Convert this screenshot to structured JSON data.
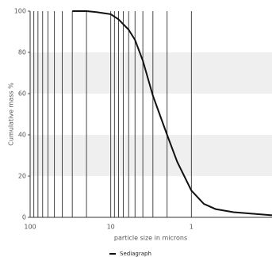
{
  "chart_data": {
    "type": "line",
    "x_label": "particle size in microns",
    "y_label": "Cumulative mass %",
    "x_scale": "log",
    "x_reversed": true,
    "xlim": [
      100,
      0.1
    ],
    "xticks": [
      100,
      10,
      1
    ],
    "xminor_ticks": [
      90,
      80,
      70,
      60,
      50,
      40,
      30,
      20,
      9,
      8,
      7,
      6,
      5,
      4,
      3,
      2
    ],
    "ylim": [
      0,
      100
    ],
    "yticks": [
      0,
      20,
      40,
      60,
      80,
      100
    ],
    "bands": true,
    "legend": "bottom",
    "series": [
      {
        "name": "Sediagraph",
        "color": "#111111",
        "x": [
          30,
          20,
          15,
          10,
          8,
          6,
          5,
          4,
          3,
          2,
          1.5,
          1,
          0.7,
          0.5,
          0.3,
          0.1
        ],
        "values": [
          100,
          100,
          99.5,
          98.5,
          96,
          91,
          86,
          76,
          59,
          40,
          27,
          13,
          6.5,
          4,
          2.5,
          1
        ]
      }
    ]
  }
}
